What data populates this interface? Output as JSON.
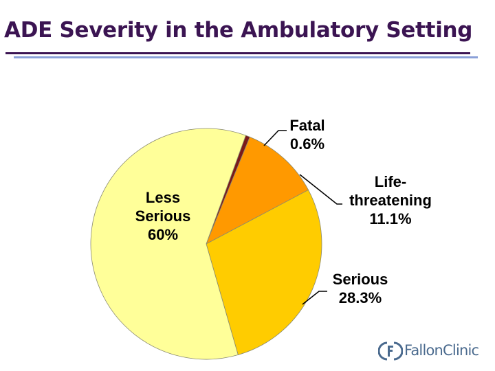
{
  "title": "ADE Severity in the Ambulatory Setting",
  "chart_data": {
    "type": "pie",
    "title": "",
    "slices": [
      {
        "label_lines": [
          "Fatal",
          "0.6%"
        ],
        "value": 0.6,
        "color": "#7a1a1a"
      },
      {
        "label_lines": [
          "Life-",
          "threatening",
          "11.1%"
        ],
        "value": 11.1,
        "color": "#ff9900"
      },
      {
        "label_lines": [
          "Serious",
          "28.3%"
        ],
        "value": 28.3,
        "color": "#ffcc00"
      },
      {
        "label_lines": [
          "Less",
          "Serious",
          "60%"
        ],
        "value": 60,
        "color": "#ffff99"
      }
    ]
  },
  "logo": {
    "text": "FallonClinic",
    "mark": "ff-mark-icon"
  }
}
